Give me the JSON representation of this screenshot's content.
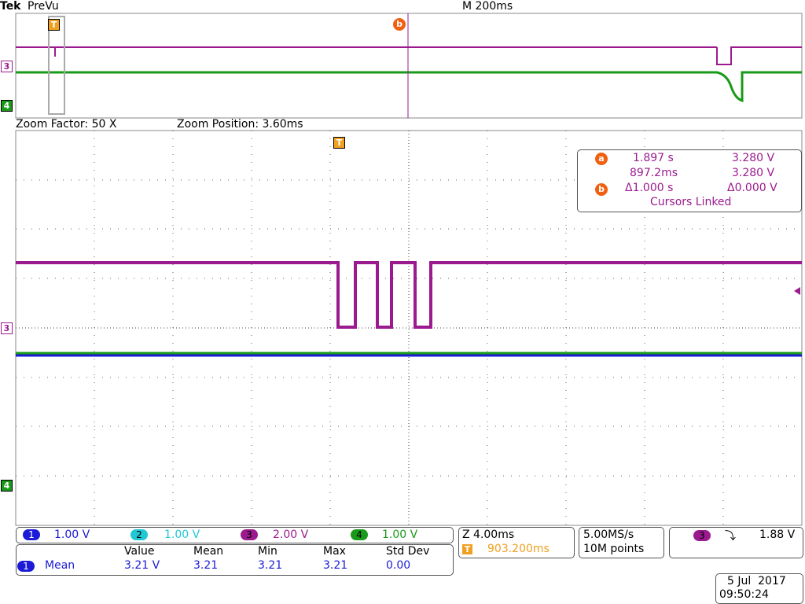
{
  "header": {
    "brand": "Tek",
    "mode": "PreVu",
    "timebase": "M 200ms"
  },
  "markers": {
    "trigger": "T",
    "cursor_b": "b",
    "ch3": "3",
    "ch4": "4"
  },
  "zoom": {
    "factor": "Zoom Factor: 50 X",
    "position": "Zoom Position: 3.60ms"
  },
  "cursors": {
    "a_label": "a",
    "a_time": "1.897 s",
    "a_volt": "3.280 V",
    "b_time": "897.2ms",
    "b_volt": "3.280 V",
    "b_label": "b",
    "delta_time": "Δ1.000 s",
    "delta_volt": "Δ0.000 V",
    "status": "Cursors Linked"
  },
  "channels": [
    {
      "number": "1",
      "scale": "1.00 V"
    },
    {
      "number": "2",
      "scale": "1.00 V"
    },
    {
      "number": "3",
      "scale": "2.00 V"
    },
    {
      "number": "4",
      "scale": "1.00 V"
    }
  ],
  "horizontal": {
    "zoom": "Z 4.00ms",
    "trigger_position": "903.200ms"
  },
  "acquisition": {
    "rate": "5.00MS/s",
    "length": "10M points"
  },
  "trigger": {
    "channel": "3",
    "level": "1.88 V"
  },
  "measurements": {
    "headers": [
      "Value",
      "Mean",
      "Min",
      "Max",
      "Std Dev"
    ],
    "rows": [
      {
        "channel": "1",
        "name": "Mean",
        "cells": [
          "3.21 V",
          "3.21",
          "3.21",
          "3.21",
          "0.00"
        ]
      }
    ]
  },
  "datetime": {
    "date": "5 Jul  2017",
    "time": "09:50:24"
  }
}
